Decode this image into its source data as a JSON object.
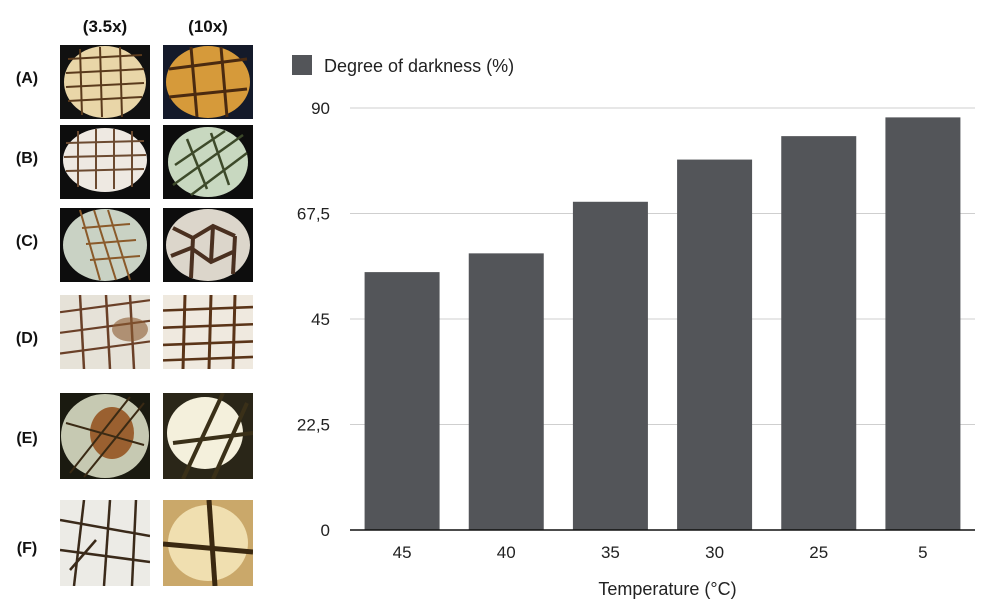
{
  "figure": {
    "col_headers": [
      "(3.5x)",
      "(10x)"
    ],
    "row_labels": [
      "(A)",
      "(B)",
      "(C)",
      "(D)",
      "(E)",
      "(F)"
    ]
  },
  "chart_data": {
    "type": "bar",
    "legend": "Degree of darkness (%)",
    "legend_position": "top-left",
    "xlabel": "Temperature (°C)",
    "ylabel": "",
    "categories": [
      "45",
      "40",
      "35",
      "30",
      "25",
      "5"
    ],
    "values": [
      55,
      59,
      70,
      79,
      84,
      88
    ],
    "ylim": [
      0,
      90
    ],
    "yticks": [
      "0",
      "22,5",
      "45",
      "67,5",
      "90"
    ],
    "ytick_values": [
      0,
      22.5,
      45,
      67.5,
      90
    ],
    "grid": true,
    "bar_color": "#535559",
    "grid_color": "#cfcfcf"
  }
}
